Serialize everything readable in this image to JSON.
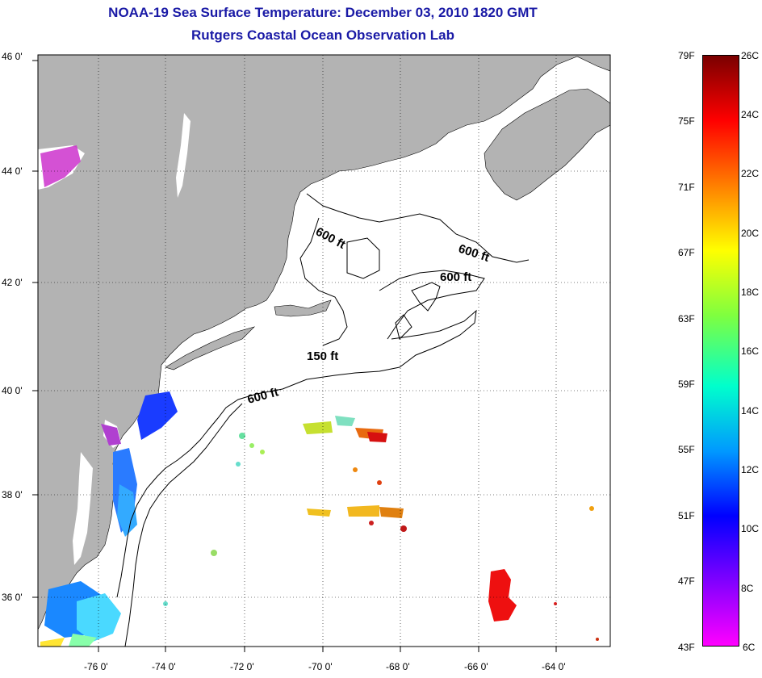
{
  "header": {
    "title": "NOAA-19 Sea Surface Temperature:  December 03, 2010 1820 GMT",
    "subtitle": "Rutgers Coastal Ocean Observation Lab"
  },
  "map": {
    "lat_labels": [
      "46 0'",
      "44 0'",
      "42 0'",
      "40 0'",
      "38 0'",
      "36 0'"
    ],
    "lon_labels": [
      "-76 0'",
      "-74 0'",
      "-72 0'",
      "-70 0'",
      "-68 0'",
      "-66 0'",
      "-64 0'"
    ],
    "depth_labels": [
      "600 ft",
      "600 ft",
      "600 ft",
      "150 ft",
      "600 ft"
    ]
  },
  "colorbar": {
    "fahrenheit": [
      "79F",
      "75F",
      "71F",
      "67F",
      "63F",
      "59F",
      "55F",
      "51F",
      "47F",
      "43F"
    ],
    "celsius": [
      "26C",
      "24C",
      "22C",
      "20C",
      "18C",
      "16C",
      "14C",
      "12C",
      "10C",
      "8C",
      "6C"
    ],
    "colors": [
      "#7a0000",
      "#ff0000",
      "#ff7f00",
      "#ffff00",
      "#7fff3f",
      "#00ffcc",
      "#0099ff",
      "#0000ff",
      "#8000ff",
      "#ff00ff"
    ]
  }
}
